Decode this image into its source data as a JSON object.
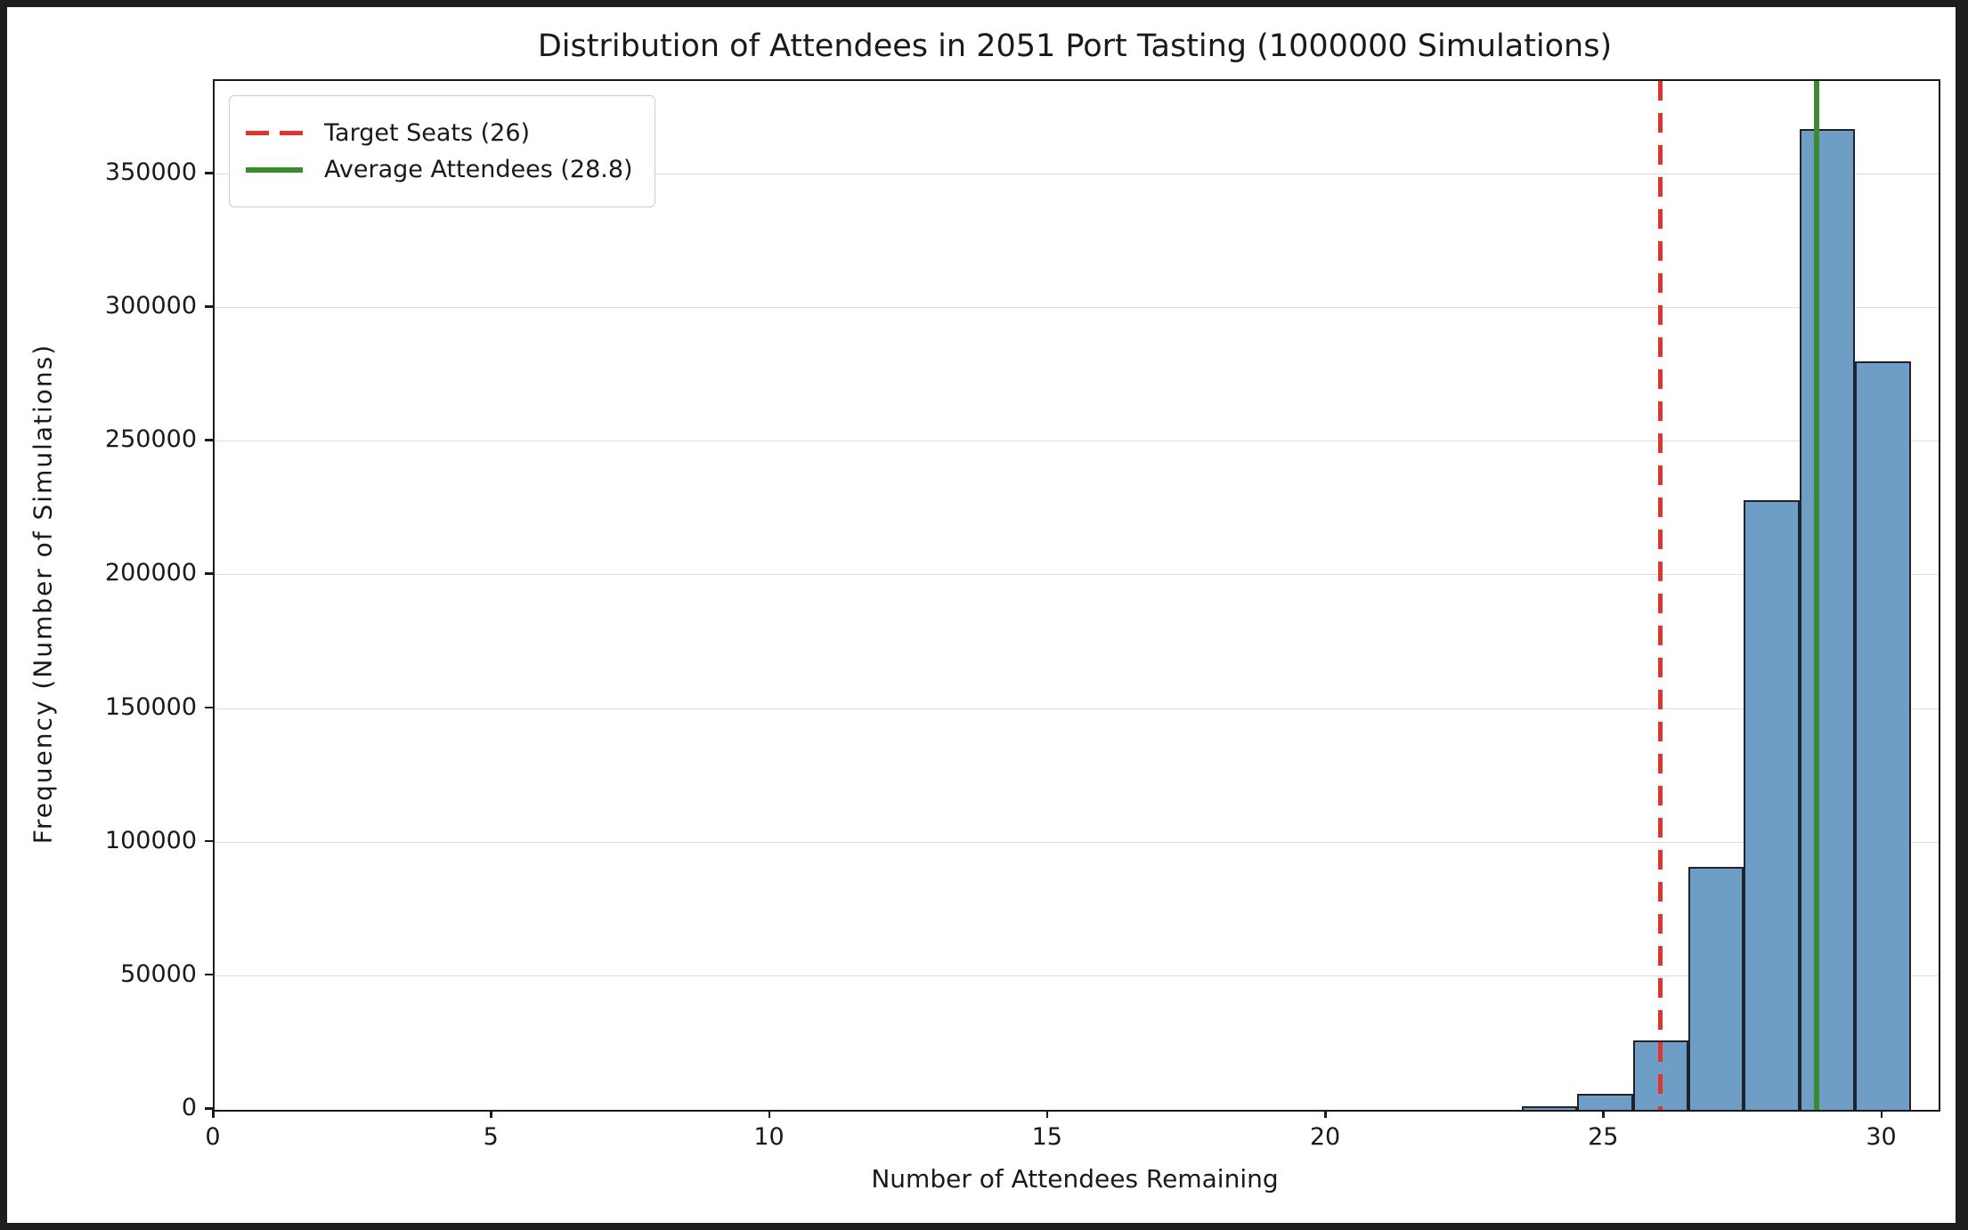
{
  "frame": {
    "background": "#1e1e1e",
    "figure_background": "#ffffff"
  },
  "chart_data": {
    "type": "bar",
    "subtype": "histogram",
    "title": "Distribution of Attendees in 2051 Port Tasting (1000000 Simulations)",
    "xlabel": "Number of Attendees Remaining",
    "ylabel": "Frequency (Number of Simulations)",
    "categories": [
      24,
      25,
      26,
      27,
      28,
      29,
      30
    ],
    "values": [
      1500,
      6000,
      26000,
      91000,
      228000,
      367000,
      280000
    ],
    "bin_width": 1,
    "xlim": [
      0,
      31
    ],
    "ylim": [
      0,
      385000
    ],
    "x_ticks": [
      0,
      5,
      10,
      15,
      20,
      25,
      30
    ],
    "y_ticks": [
      0,
      50000,
      100000,
      150000,
      200000,
      250000,
      300000,
      350000
    ],
    "grid": "horizontal",
    "legend_position": "upper-left",
    "colors": {
      "bar_fill": "#6e9ec6",
      "bar_edge": "#20242a",
      "gridline": "#dcdcdc",
      "axis": "#1a1a1a",
      "target_line": "#e0352f",
      "average_line": "#3a8a2e"
    },
    "vlines": [
      {
        "x": 26,
        "style": "dashed",
        "color": "#e0352f",
        "label": "Target Seats (26)"
      },
      {
        "x": 28.8,
        "style": "solid",
        "color": "#3a8a2e",
        "label": "Average Attendees (28.8)"
      }
    ]
  }
}
